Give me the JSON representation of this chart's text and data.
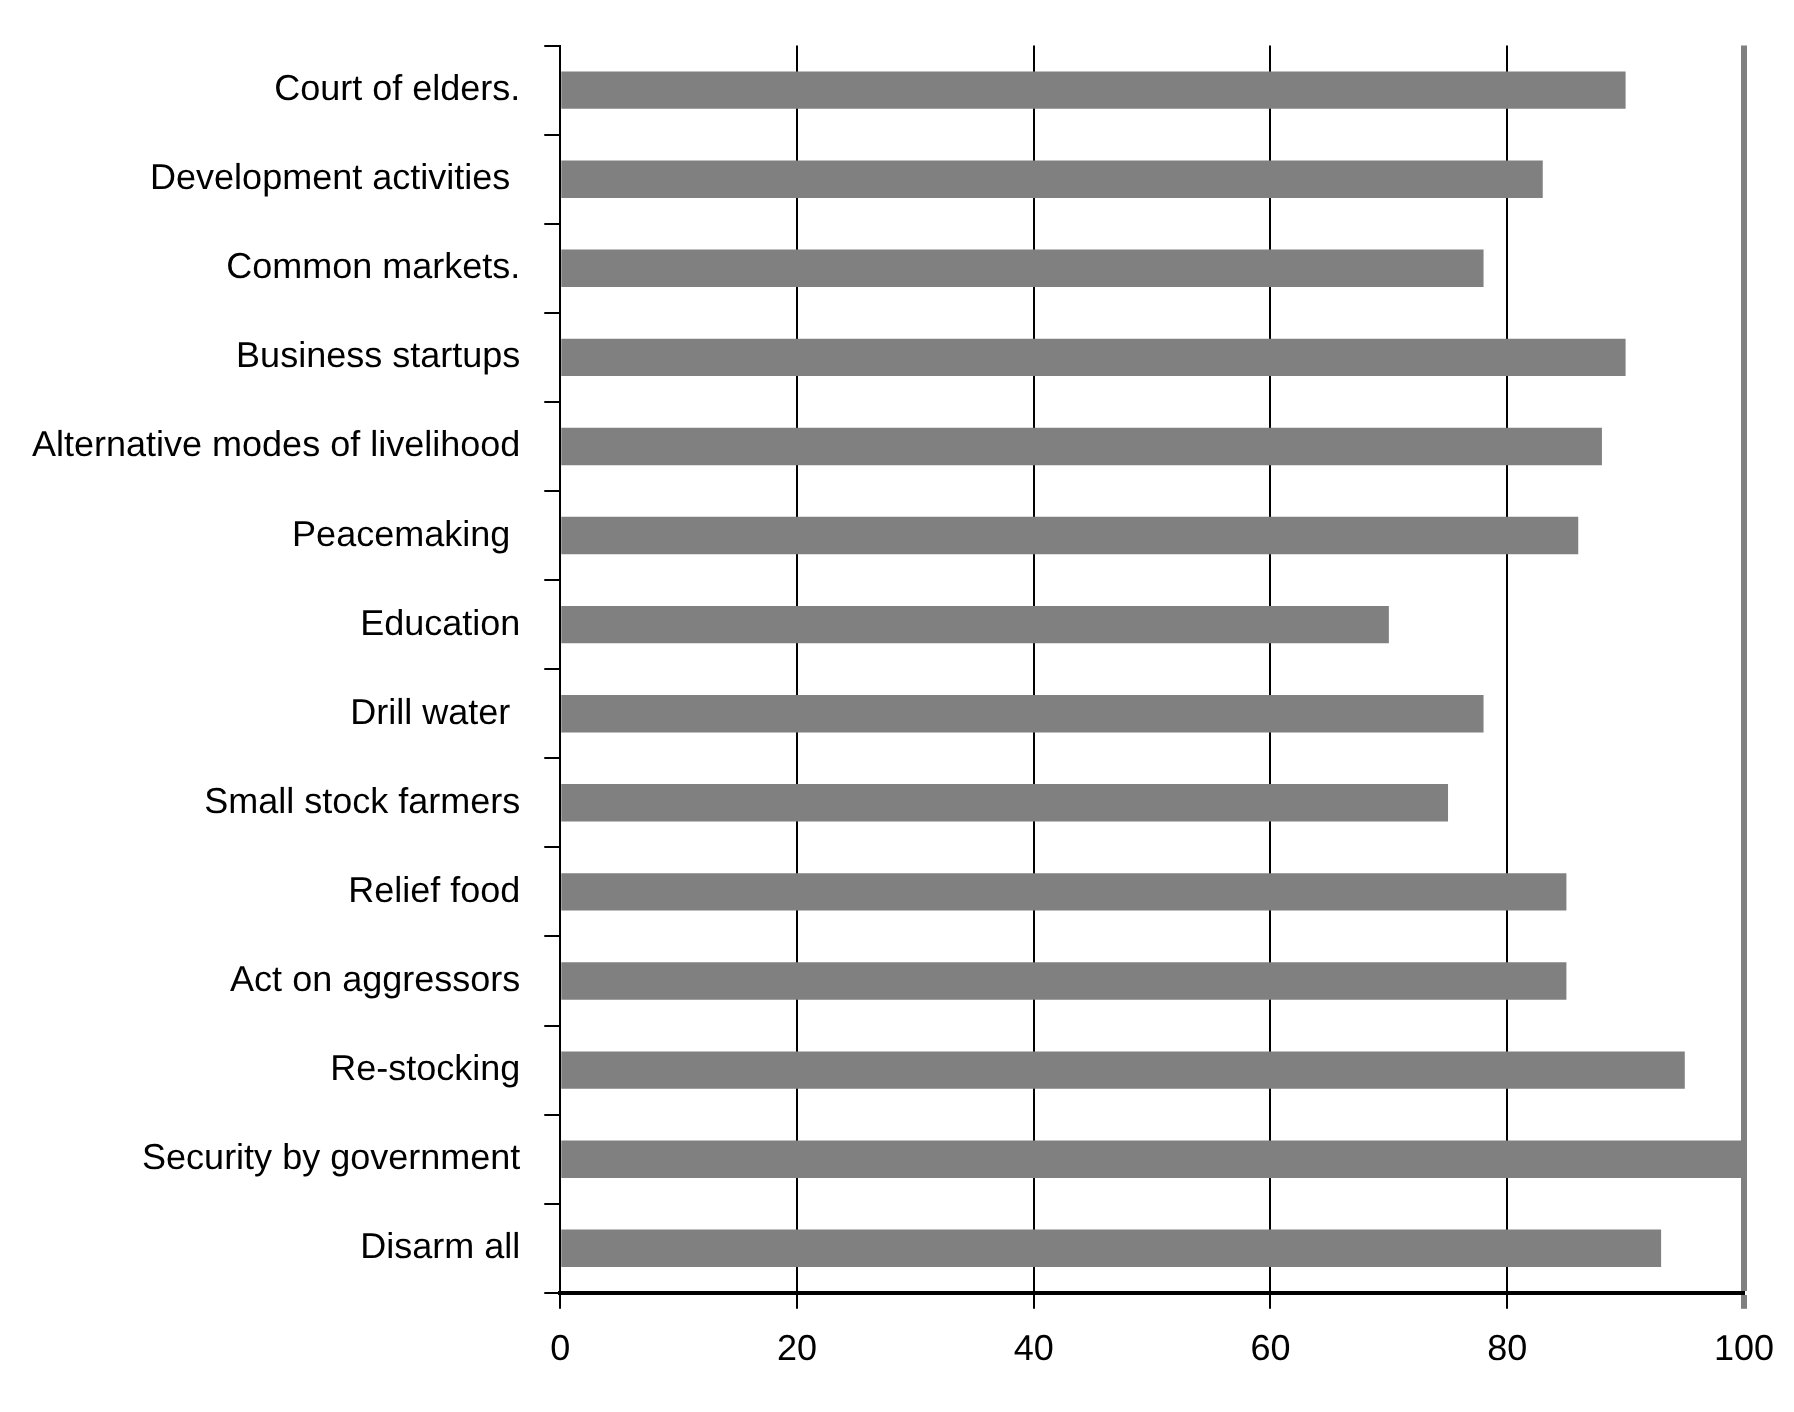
{
  "chart_data": {
    "type": "bar",
    "orientation": "horizontal",
    "categories": [
      "Court of elders.",
      "Development activities ",
      "Common markets.",
      "Business startups",
      "Alternative modes of livelihood",
      "Peacemaking ",
      "Education",
      "Drill water ",
      "Small stock farmers",
      "Relief food",
      "Act on aggressors",
      "Re-stocking",
      "Security by government",
      "Disarm all"
    ],
    "values": [
      90,
      83,
      78,
      90,
      88,
      86,
      70,
      78,
      75,
      85,
      85,
      95,
      100,
      93
    ],
    "color": "#808080",
    "xlim": [
      0,
      100
    ],
    "xticks": [
      0,
      20,
      40,
      60,
      80,
      100
    ],
    "grid": "x",
    "legend": false
  }
}
